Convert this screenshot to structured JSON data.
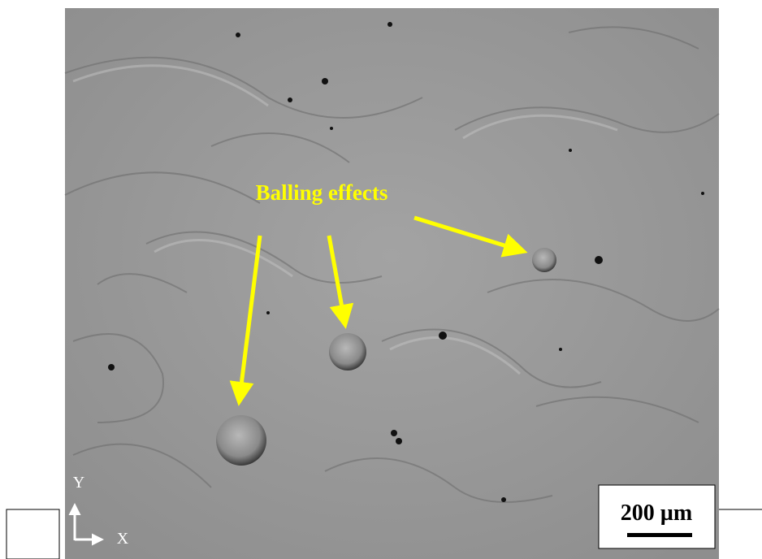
{
  "annotation": {
    "label": "Balling effects"
  },
  "scale_bar": {
    "label": "200 µm"
  },
  "axes": {
    "y": "Y",
    "x": "X"
  }
}
